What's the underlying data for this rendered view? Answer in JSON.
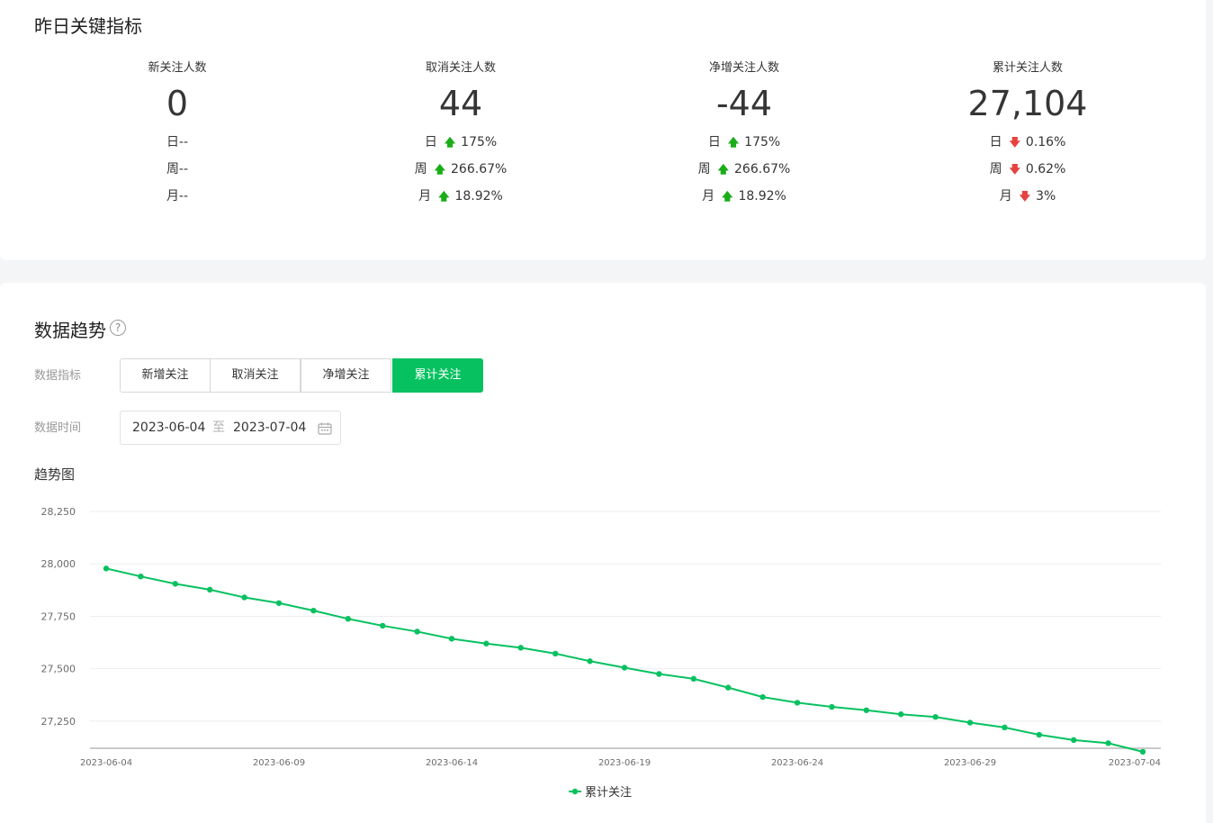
{
  "metrics_section": {
    "title": "昨日关键指标",
    "items": [
      {
        "label": "新关注人数",
        "value": "0",
        "changes": [
          {
            "period": "日--",
            "direction": "none",
            "percent": ""
          },
          {
            "period": "周--",
            "direction": "none",
            "percent": ""
          },
          {
            "period": "月--",
            "direction": "none",
            "percent": ""
          }
        ]
      },
      {
        "label": "取消关注人数",
        "value": "44",
        "changes": [
          {
            "period": "日",
            "direction": "up",
            "percent": "175%"
          },
          {
            "period": "周",
            "direction": "up",
            "percent": "266.67%"
          },
          {
            "period": "月",
            "direction": "up",
            "percent": "18.92%"
          }
        ]
      },
      {
        "label": "净增关注人数",
        "value": "-44",
        "changes": [
          {
            "period": "日",
            "direction": "up",
            "percent": "175%"
          },
          {
            "period": "周",
            "direction": "up",
            "percent": "266.67%"
          },
          {
            "period": "月",
            "direction": "up",
            "percent": "18.92%"
          }
        ]
      },
      {
        "label": "累计关注人数",
        "value": "27,104",
        "changes": [
          {
            "period": "日",
            "direction": "down",
            "percent": "0.16%"
          },
          {
            "period": "周",
            "direction": "down",
            "percent": "0.62%"
          },
          {
            "period": "月",
            "direction": "down",
            "percent": "3%"
          }
        ]
      }
    ]
  },
  "trend_section": {
    "title": "数据趋势",
    "help_icon_glyph": "?",
    "indicator_label": "数据指标",
    "tabs": [
      "新增关注",
      "取消关注",
      "净增关注",
      "累计关注"
    ],
    "active_tab": "累计关注",
    "time_label": "数据时间",
    "date_start": "2023-06-04",
    "date_sep": "至",
    "date_end": "2023-07-04",
    "chart_title": "趋势图"
  },
  "colors": {
    "accent": "#07c160",
    "up": "#1aad19",
    "down": "#e64340"
  },
  "chart_data": {
    "type": "line",
    "title": "趋势图",
    "xlabel": "",
    "ylabel": "",
    "x": [
      "2023-06-04",
      "2023-06-05",
      "2023-06-06",
      "2023-06-07",
      "2023-06-08",
      "2023-06-09",
      "2023-06-10",
      "2023-06-11",
      "2023-06-12",
      "2023-06-13",
      "2023-06-14",
      "2023-06-15",
      "2023-06-16",
      "2023-06-17",
      "2023-06-18",
      "2023-06-19",
      "2023-06-20",
      "2023-06-21",
      "2023-06-22",
      "2023-06-23",
      "2023-06-24",
      "2023-06-25",
      "2023-06-26",
      "2023-06-27",
      "2023-06-28",
      "2023-06-29",
      "2023-06-30",
      "2023-07-01",
      "2023-07-02",
      "2023-07-03",
      "2023-07-04"
    ],
    "x_tick_labels": [
      "2023-06-04",
      "2023-06-09",
      "2023-06-14",
      "2023-06-19",
      "2023-06-24",
      "2023-06-29",
      "2023-07-04"
    ],
    "series": [
      {
        "name": "累计关注",
        "values": [
          27978,
          27940,
          27905,
          27877,
          27840,
          27813,
          27777,
          27738,
          27705,
          27677,
          27643,
          27620,
          27600,
          27572,
          27536,
          27505,
          27475,
          27452,
          27410,
          27365,
          27338,
          27318,
          27302,
          27283,
          27270,
          27243,
          27220,
          27185,
          27160,
          27145,
          27104
        ]
      }
    ],
    "ylim": [
      27125,
      28250
    ],
    "y_ticks": [
      "28,250",
      "28,000",
      "27,750",
      "27,500",
      "27,250"
    ],
    "y_tick_values": [
      28250,
      28000,
      27750,
      27500,
      27250
    ],
    "grid": true,
    "legend": "bottom-center"
  }
}
